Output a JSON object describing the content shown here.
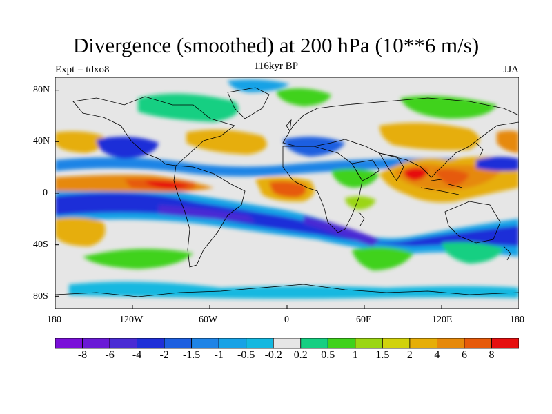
{
  "header": {
    "title": "Divergence (smoothed) at 200 hPa (10**6 m/s)",
    "subtitle": "116kyr BP",
    "left_label": "Expt = tdxo8",
    "right_label": "JJA"
  },
  "map": {
    "projection": "cylindrical equidistant",
    "lon_range": [
      -180,
      180
    ],
    "lat_range": [
      -90,
      90
    ],
    "y_ticks": [
      "80N",
      "40N",
      "0",
      "40S",
      "80S"
    ],
    "x_ticks": [
      "180",
      "120W",
      "60W",
      "0",
      "60E",
      "120E",
      "180"
    ]
  },
  "colorbar": {
    "labels": [
      "-8",
      "-6",
      "-4",
      "-2",
      "-1.5",
      "-1",
      "-0.5",
      "-0.2",
      "0.2",
      "0.5",
      "1",
      "1.5",
      "2",
      "4",
      "6",
      "8"
    ],
    "colors": [
      "#7a0fd9",
      "#6a1ad6",
      "#4a2bd4",
      "#1f2fd8",
      "#1d5fe0",
      "#1f84e6",
      "#17a2e6",
      "#14b8e0",
      "#e6e6e6",
      "#16cf82",
      "#3fd21c",
      "#9bd613",
      "#d1d20c",
      "#e6ae08",
      "#e6890a",
      "#e65a0a",
      "#e60f0f"
    ]
  }
}
